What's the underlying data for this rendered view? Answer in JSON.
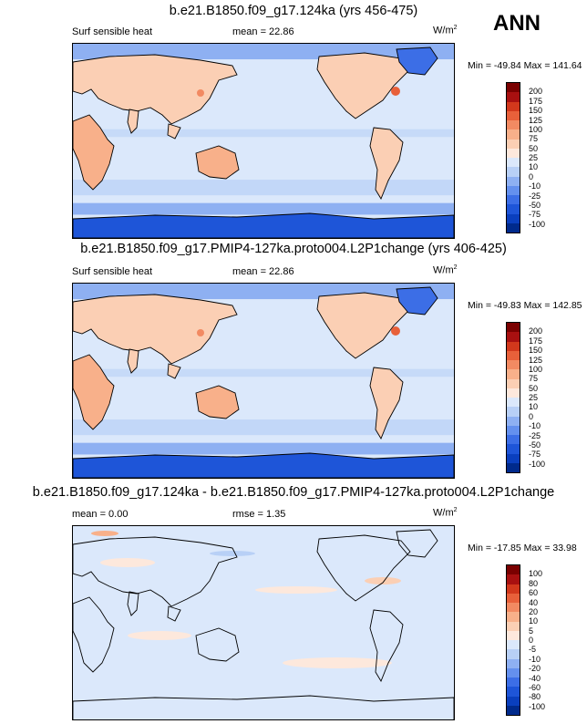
{
  "season": "ANN",
  "panels": [
    {
      "title": "b.e21.B1850.f09_g17.124ka (yrs 456-475)",
      "left_label": "Surf sensible heat",
      "stat_label": "mean =  22.86",
      "units": "W/m",
      "units_sup": "2",
      "minmax": "Min = -49.84 Max = 141.64",
      "colorbar_levels": [
        "200",
        "175",
        "150",
        "125",
        "100",
        "75",
        "50",
        "25",
        "10",
        "0",
        "-10",
        "-25",
        "-50",
        "-75",
        "-100"
      ]
    },
    {
      "title": "b.e21.B1850.f09_g17.PMIP4-127ka.proto004.L2P1change (yrs 406-425)",
      "left_label": "Surf sensible heat",
      "stat_label": "mean =  22.86",
      "units": "W/m",
      "units_sup": "2",
      "minmax": "Min = -49.83 Max = 142.85",
      "colorbar_levels": [
        "200",
        "175",
        "150",
        "125",
        "100",
        "75",
        "50",
        "25",
        "10",
        "0",
        "-10",
        "-25",
        "-50",
        "-75",
        "-100"
      ]
    },
    {
      "title": "b.e21.B1850.f09_g17.124ka - b.e21.B1850.f09_g17.PMIP4-127ka.proto004.L2P1change",
      "left_label": "mean =  0.00",
      "stat_label": "rmse =  1.35",
      "units": "W/m",
      "units_sup": "2",
      "minmax": "Min = -17.85 Max = 33.98",
      "colorbar_levels": [
        "100",
        "80",
        "60",
        "40",
        "20",
        "10",
        "5",
        "0",
        "-5",
        "-10",
        "-20",
        "-40",
        "-60",
        "-80",
        "-100"
      ]
    }
  ],
  "chart_data": [
    {
      "type": "heatmap",
      "title": "b.e21.B1850.f09_g17.124ka (yrs 456-475)",
      "variable": "Surf sensible heat",
      "mean": 22.86,
      "min": -49.84,
      "max": 141.64,
      "units": "W/m2",
      "contour_levels": [
        -100,
        -75,
        -50,
        -25,
        -10,
        0,
        10,
        25,
        50,
        75,
        100,
        125,
        150,
        175,
        200
      ]
    },
    {
      "type": "heatmap",
      "title": "b.e21.B1850.f09_g17.PMIP4-127ka.proto004.L2P1change (yrs 406-425)",
      "variable": "Surf sensible heat",
      "mean": 22.86,
      "min": -49.83,
      "max": 142.85,
      "units": "W/m2",
      "contour_levels": [
        -100,
        -75,
        -50,
        -25,
        -10,
        0,
        10,
        25,
        50,
        75,
        100,
        125,
        150,
        175,
        200
      ]
    },
    {
      "type": "heatmap",
      "title": "b.e21.B1850.f09_g17.124ka - b.e21.B1850.f09_g17.PMIP4-127ka.proto004.L2P1change",
      "mean": 0.0,
      "rmse": 1.35,
      "min": -17.85,
      "max": 33.98,
      "units": "W/m2",
      "contour_levels": [
        -100,
        -80,
        -60,
        -40,
        -20,
        -10,
        -5,
        0,
        5,
        10,
        20,
        40,
        60,
        80,
        100
      ]
    }
  ],
  "palette": [
    "#002a8c",
    "#0a3fbe",
    "#1e55d8",
    "#3c6ee6",
    "#6490ee",
    "#8eb0f2",
    "#b8d0f6",
    "#dbe8fb",
    "#fde8dc",
    "#fbcfb4",
    "#f8b08a",
    "#f28a62",
    "#e8603a",
    "#d2381c",
    "#a81010",
    "#7a0000"
  ],
  "palette_diff": [
    "#002a8c",
    "#0a3fbe",
    "#1e55d8",
    "#3c6ee6",
    "#6490ee",
    "#8eb0f2",
    "#b8d0f6",
    "#dbe8fb",
    "#fde8dc",
    "#fbcfb4",
    "#f8b08a",
    "#f28a62",
    "#e8603a",
    "#d2381c",
    "#a81010",
    "#7a0000"
  ]
}
